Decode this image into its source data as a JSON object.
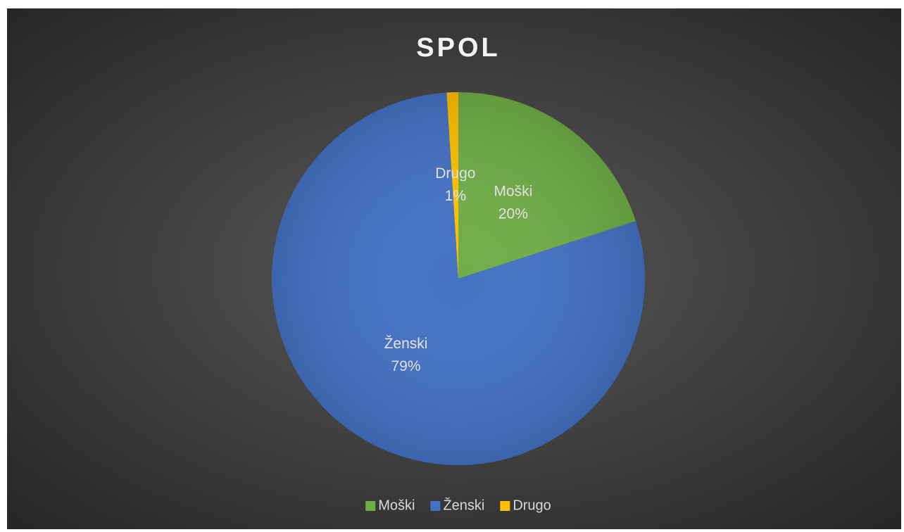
{
  "chart_data": {
    "type": "pie",
    "title": "SPOL",
    "categories": [
      "Moški",
      "Ženski",
      "Drugo"
    ],
    "values": [
      20,
      79,
      1
    ],
    "value_labels": [
      "20%",
      "79%",
      "1%"
    ],
    "colors": [
      "#70ad47",
      "#4472c4",
      "#ffc000"
    ],
    "legend": "bottom"
  }
}
